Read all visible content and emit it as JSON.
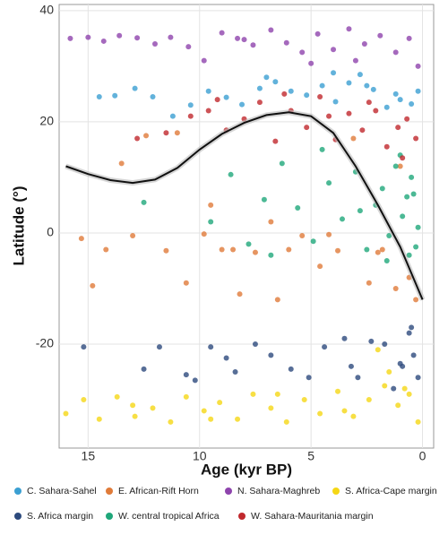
{
  "chart_data": {
    "type": "scatter",
    "x_label": "Age (kyr BP)",
    "y_label": "Latitude (°)",
    "xlim": [
      16.3,
      -0.5
    ],
    "ylim": [
      -38.7,
      41.1
    ],
    "xticks": [
      15,
      10,
      5,
      0
    ],
    "yticks": [
      -20,
      0,
      20,
      40
    ],
    "grid": true,
    "series": [
      {
        "name": "C. Sahara-Sahel",
        "color": "#3b9fd2",
        "x": [
          14.5,
          13.8,
          12.9,
          12.1,
          11.2,
          10.4,
          9.6,
          8.8,
          8.1,
          7.3,
          6.6,
          5.9,
          5.2,
          4.5,
          3.9,
          3.3,
          2.8,
          2.2,
          1.6,
          1.0,
          0.5,
          0.2,
          7.0,
          4.0,
          2.5,
          1.2
        ],
        "y": [
          24.5,
          24.7,
          26,
          24.5,
          21,
          23,
          25.5,
          24.4,
          23.1,
          26,
          27.2,
          25.5,
          24.8,
          26.5,
          23.6,
          27,
          28.5,
          25.8,
          22.6,
          24,
          23.2,
          25.5,
          28,
          28.8,
          26.5,
          25
        ]
      },
      {
        "name": "E. African-Rift Horn",
        "color": "#e07b39",
        "x": [
          15.3,
          14.2,
          13,
          12.4,
          11.5,
          10.6,
          9.8,
          9,
          8.2,
          7.5,
          6.8,
          6,
          5.4,
          4.6,
          3.8,
          3.1,
          2.4,
          1.8,
          1.2,
          0.6,
          0.3,
          13.5,
          11,
          8.5,
          6.5,
          4.2,
          2,
          1,
          9.5,
          14.8
        ],
        "y": [
          -1,
          -3,
          -0.5,
          17.5,
          -3.2,
          -9,
          -0.2,
          -3,
          -11,
          -3.5,
          2,
          -3,
          -0.5,
          -6,
          -3.2,
          17,
          -9,
          -3,
          -10,
          -8,
          -12,
          12.5,
          18,
          -3,
          -12,
          -0.3,
          -3.5,
          12,
          5,
          -9.5
        ]
      },
      {
        "name": "N. Sahara-Maghreb",
        "color": "#8e44ad",
        "x": [
          15.8,
          15,
          14.3,
          13.6,
          12.8,
          12,
          11.3,
          10.5,
          9.8,
          9,
          8.3,
          7.6,
          6.8,
          6.1,
          5.4,
          4.7,
          4,
          3.3,
          2.6,
          1.9,
          1.2,
          0.6,
          0.2,
          8,
          5,
          3
        ],
        "y": [
          35,
          35.2,
          34.5,
          35.5,
          35.1,
          34,
          35.2,
          33.5,
          31,
          36,
          35,
          33.8,
          36.5,
          34.2,
          32.5,
          35.8,
          33,
          36.7,
          34,
          35.5,
          32.5,
          35,
          30,
          34.8,
          30.5,
          31
        ]
      },
      {
        "name": "S. Africa-Cape margin",
        "color": "#f5d715",
        "x": [
          16,
          15.2,
          14.5,
          13.7,
          12.9,
          12.1,
          11.3,
          10.6,
          9.8,
          9.1,
          8.3,
          7.6,
          6.8,
          6.1,
          5.3,
          4.6,
          3.8,
          3.1,
          2.4,
          1.7,
          1.1,
          0.6,
          0.2,
          13,
          9.5,
          6.5,
          3.5,
          1.5,
          0.8,
          2
        ],
        "y": [
          -32.5,
          -30,
          -33.5,
          -29.5,
          -33,
          -31.5,
          -34,
          -29.5,
          -32,
          -30.5,
          -33.5,
          -29,
          -31.5,
          -34,
          -30,
          -32.5,
          -28.5,
          -33,
          -30,
          -27.5,
          -31,
          -29,
          -34,
          -31,
          -33.5,
          -29,
          -32,
          -25,
          -28,
          -21
        ]
      },
      {
        "name": "S. Africa margin",
        "color": "#2d4a7d",
        "x": [
          15.2,
          12.5,
          11.8,
          10.6,
          9.5,
          8.4,
          7.5,
          6.8,
          5.9,
          5.1,
          4.4,
          3.5,
          2.9,
          2.3,
          1.7,
          1.3,
          0.9,
          0.6,
          0.4,
          0.2,
          1.0,
          0.5,
          3.2,
          8.8,
          10.2
        ],
        "y": [
          -20.5,
          -24.5,
          -20.5,
          -25.5,
          -20.5,
          -25,
          -20,
          -22,
          -24.5,
          -26,
          -20.5,
          -19,
          -26,
          -19.5,
          -20,
          -28,
          -24,
          -18,
          -22,
          -26,
          -23.5,
          -17,
          -24,
          -22.5,
          -26.5
        ]
      },
      {
        "name": "W. central tropical Africa",
        "color": "#1fa77a",
        "x": [
          9.5,
          8.6,
          7.8,
          7.1,
          6.3,
          5.6,
          4.9,
          4.2,
          3.6,
          3.0,
          2.5,
          2.1,
          1.8,
          1.5,
          1.2,
          0.9,
          0.6,
          0.4,
          0.2,
          1.0,
          0.5,
          0.3,
          2.8,
          1.6,
          0.7,
          12.5,
          6.8,
          4.5
        ],
        "y": [
          2,
          10.5,
          -2,
          6,
          12.5,
          4.5,
          -1.5,
          9,
          2.5,
          11,
          -3,
          5,
          8,
          -0.5,
          12,
          3,
          -4,
          7,
          1,
          14,
          10,
          -2.5,
          4,
          -5,
          6.5,
          5.5,
          -4,
          15
        ]
      },
      {
        "name": "W. Sahara-Mauritania margin",
        "color": "#c0282d",
        "x": [
          12.8,
          11.5,
          10.4,
          9.6,
          8.8,
          8.0,
          7.3,
          6.6,
          5.9,
          5.2,
          4.6,
          3.9,
          3.3,
          2.7,
          2.1,
          1.6,
          1.1,
          0.7,
          0.3,
          9.2,
          6.2,
          4.2,
          2.4,
          0.9
        ],
        "y": [
          17,
          18,
          21,
          22,
          18.5,
          20.5,
          23.5,
          16.5,
          22,
          19,
          24.5,
          16.8,
          21.5,
          18.5,
          22,
          15.5,
          19,
          20.5,
          17,
          24,
          25,
          21,
          23.5,
          13.5
        ]
      }
    ],
    "trend": {
      "color": "#111111",
      "x": [
        16,
        15,
        14,
        13,
        12,
        11,
        10,
        9,
        8,
        7,
        6,
        5,
        4,
        3,
        2,
        1,
        0
      ],
      "y": [
        12,
        10.6,
        9.5,
        9,
        9.6,
        11.7,
        15,
        17.8,
        19.8,
        21.2,
        21.7,
        21,
        18,
        12,
        5,
        -2.5,
        -12
      ]
    }
  }
}
